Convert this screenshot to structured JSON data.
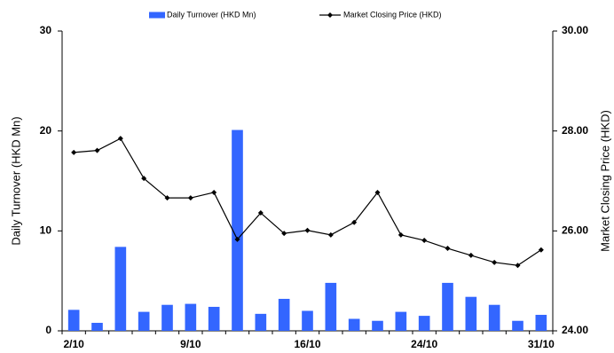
{
  "chart_data": {
    "type": "bar",
    "categories": [
      "2/10",
      null,
      null,
      null,
      null,
      "9/10",
      null,
      null,
      null,
      null,
      "16/10",
      null,
      null,
      null,
      null,
      "24/10",
      null,
      null,
      null,
      null,
      "31/10"
    ],
    "series": [
      {
        "name": "Daily Turnover (HKD Mn)",
        "color": "#3366ff",
        "type": "bar",
        "values": [
          2.1,
          0.8,
          8.4,
          1.9,
          2.6,
          2.7,
          2.4,
          20.1,
          1.7,
          3.2,
          2.0,
          4.8,
          1.2,
          1.0,
          1.9,
          1.5,
          4.8,
          3.4,
          2.6,
          1.0,
          1.6
        ]
      },
      {
        "name": "Market Closing Price (HKD)",
        "color": "#000000",
        "type": "line",
        "axis": "y2",
        "values": [
          27.57,
          27.61,
          27.85,
          27.05,
          26.66,
          26.66,
          26.77,
          25.83,
          26.36,
          25.95,
          26.01,
          25.92,
          26.17,
          26.77,
          25.92,
          25.81,
          25.65,
          25.51,
          25.37,
          25.31,
          25.62
        ]
      }
    ],
    "ylabel": "Daily Turnover (HKD Mn)",
    "y2label": "Market Closing Price (HKD)",
    "ylim": [
      0,
      30
    ],
    "yticks": [
      0,
      10,
      20,
      30
    ],
    "y2lim": [
      24,
      30
    ],
    "y2ticks": [
      {
        "value": 24,
        "label": "24.00"
      },
      {
        "value": 26,
        "label": "26.00"
      },
      {
        "value": 28,
        "label": "28.00"
      },
      {
        "value": 30,
        "label": "30.00"
      }
    ],
    "legend": "top"
  }
}
